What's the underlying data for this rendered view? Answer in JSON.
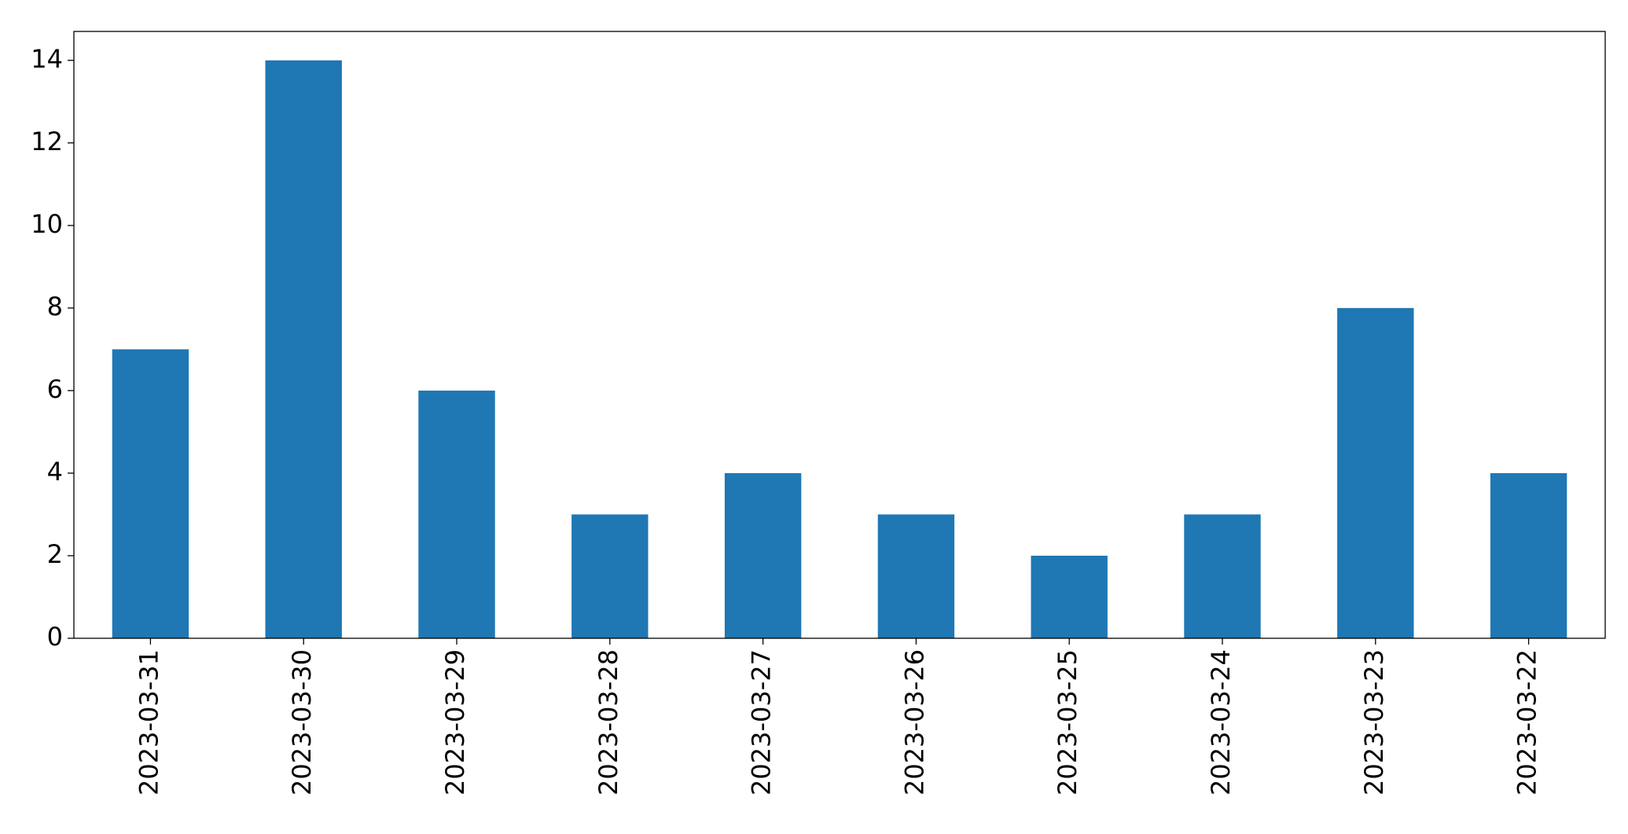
{
  "chart_data": {
    "type": "bar",
    "categories": [
      "2023-03-31",
      "2023-03-30",
      "2023-03-29",
      "2023-03-28",
      "2023-03-27",
      "2023-03-26",
      "2023-03-25",
      "2023-03-24",
      "2023-03-23",
      "2023-03-22"
    ],
    "values": [
      7,
      14,
      6,
      3,
      4,
      3,
      2,
      3,
      8,
      4
    ],
    "color": "#1f77b4",
    "ylim": [
      0,
      14.7
    ],
    "yticks": [
      0,
      2,
      4,
      6,
      8,
      10,
      12,
      14
    ],
    "grid": false
  }
}
